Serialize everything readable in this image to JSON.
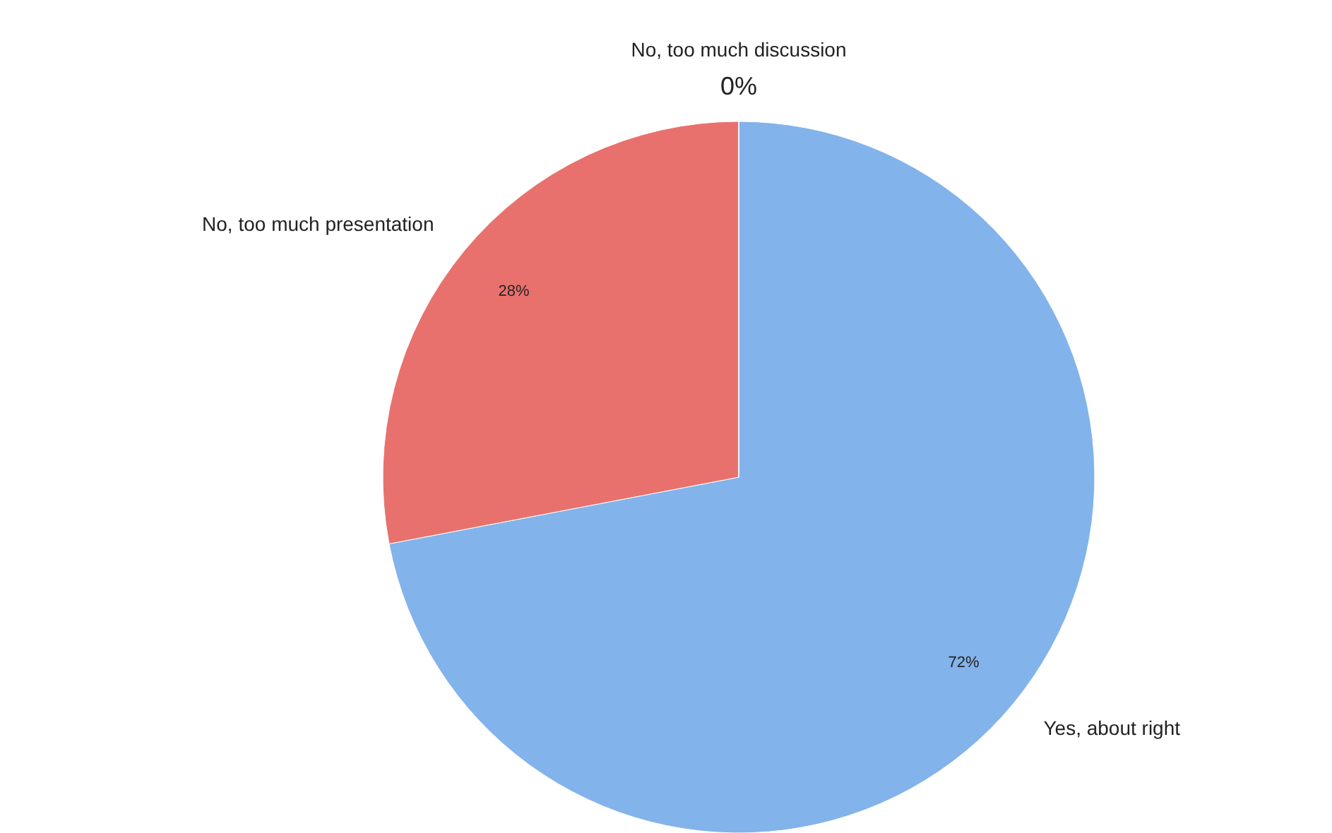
{
  "chart_data": {
    "type": "pie",
    "categories": [
      "Yes, about right",
      "No, too much presentation",
      "No, too much discussion"
    ],
    "values": [
      72,
      28,
      0
    ],
    "colors": [
      "#82b3ea",
      "#e8716d",
      "#c9c9c9"
    ],
    "value_labels": [
      "72%",
      "28%",
      "0%"
    ]
  }
}
